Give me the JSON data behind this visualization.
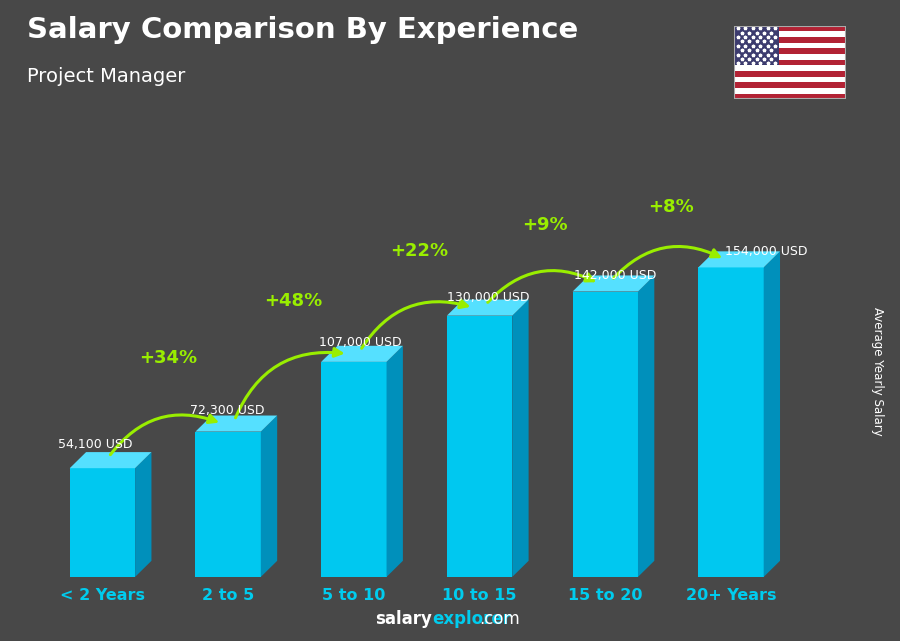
{
  "title": "Salary Comparison By Experience",
  "subtitle": "Project Manager",
  "ylabel": "Average Yearly Salary",
  "categories": [
    "< 2 Years",
    "2 to 5",
    "5 to 10",
    "10 to 15",
    "15 to 20",
    "20+ Years"
  ],
  "values": [
    54100,
    72300,
    107000,
    130000,
    142000,
    154000
  ],
  "labels": [
    "54,100 USD",
    "72,300 USD",
    "107,000 USD",
    "130,000 USD",
    "142,000 USD",
    "154,000 USD"
  ],
  "pct_changes": [
    "+34%",
    "+48%",
    "+22%",
    "+9%",
    "+8%"
  ],
  "bar_front": "#00c8f0",
  "bar_top": "#55e0ff",
  "bar_side": "#0090bb",
  "pct_color": "#99ee00",
  "label_color": "#ffffff",
  "title_color": "#ffffff",
  "subtitle_color": "#ffffff",
  "bg_color": "#484848",
  "axis_label_color": "#00ccee",
  "ylim_max": 185000,
  "footer_salary": "salary",
  "footer_explorer": "explorer",
  "footer_com": ".com"
}
